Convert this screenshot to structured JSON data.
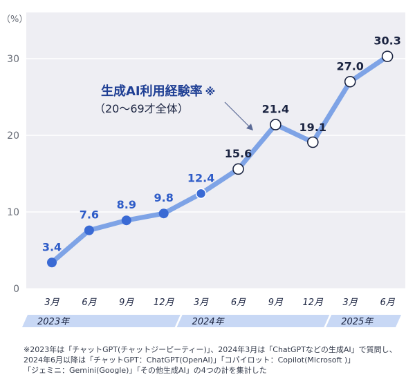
{
  "chart_data": {
    "type": "line",
    "unit_label": "（%）",
    "y_ticks": [
      0,
      10,
      20,
      30
    ],
    "ylim": [
      0,
      35
    ],
    "grid": true,
    "categories": [
      "3月",
      "6月",
      "9月",
      "12月",
      "3月",
      "6月",
      "9月",
      "12月",
      "3月",
      "6月"
    ],
    "series": [
      {
        "name": "生成AI利用経験率",
        "values": [
          3.4,
          7.6,
          8.9,
          9.8,
          12.4,
          15.6,
          21.4,
          19.1,
          27.0,
          30.3
        ],
        "labels": [
          "3.4",
          "7.6",
          "8.9",
          "9.8",
          "12.4",
          "15.6",
          "21.4",
          "19.1",
          "27.0",
          "30.3"
        ]
      }
    ],
    "years": [
      {
        "label": "2023年",
        "from": 0,
        "to": 3
      },
      {
        "label": "2024年",
        "from": 4,
        "to": 7
      },
      {
        "label": "2025年",
        "from": 8,
        "to": 9
      }
    ],
    "annotation": {
      "line1": "生成AI利用経験率",
      "mark": "※",
      "line2": "（20〜69才全体）"
    },
    "colors": {
      "line": "#7ea3e6",
      "marker_2023": "#3a6ad4",
      "marker_2024_fill": "#ffffff",
      "label_2023": "#2e5cc8",
      "label_dark": "#1a2340",
      "plot_bg": "#eeeef3",
      "year_band": "#c8d8f5",
      "grid": "#ffffff"
    }
  },
  "footnote": {
    "line1": "※2023年は「チャットGPT(チャットジーピーティー)」、2024年3月は「ChatGPTなどの生成AI」で質問し、",
    "line2": "2024年6月以降は「チャットGPT：ChatGPT(OpenAI)」「コパイロット：Copilot(Microsoft )」",
    "line3": "「ジェミニ：Gemini(Google)」「その他生成AI」の4つの計を集計した"
  }
}
